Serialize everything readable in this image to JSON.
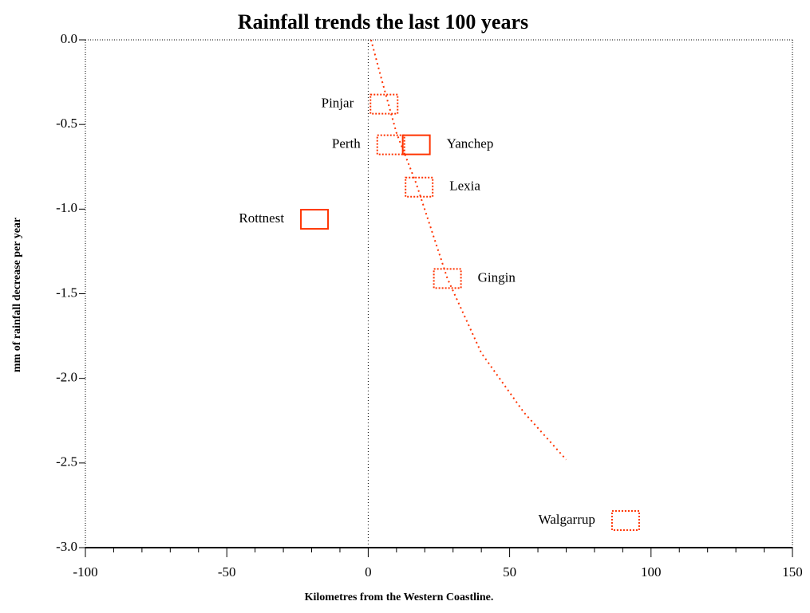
{
  "chart_data": {
    "type": "scatter",
    "title": "Rainfall trends the last 100 years",
    "xlabel": "Kilometres from the Western Coastline.",
    "ylabel": "mm of rainfall decrease per year",
    "series": [
      {
        "name": null,
        "color": "#ff3300",
        "labels": [
          "Pinjar",
          "Perth",
          "Yanchep",
          "Lexia",
          "Rottnest",
          "Gingin",
          "Walgarrup"
        ],
        "x": [
          5.6,
          8,
          17,
          18,
          -19,
          28,
          91
        ],
        "values": [
          -0.38,
          -0.62,
          -0.62,
          -0.87,
          -1.06,
          -1.41,
          -2.84
        ],
        "marker_styles": [
          "dotted",
          "dotted",
          "solid",
          "dotted",
          "solid",
          "dotted",
          "dotted"
        ]
      }
    ],
    "trend": {
      "color": "#ff3300",
      "x": [
        1,
        5,
        10,
        17,
        28,
        40,
        55,
        70
      ],
      "values": [
        0,
        -0.25,
        -0.55,
        -0.85,
        -1.41,
        -1.85,
        -2.2,
        -2.48
      ]
    },
    "xlim": [
      -100,
      150
    ],
    "xticks": [
      -100,
      -50,
      0,
      50,
      100,
      150
    ],
    "ylim": [
      -3,
      0
    ],
    "yticks": [
      {
        "value": 0,
        "label": "0.0"
      },
      -0.5,
      {
        "value": -1,
        "label": "-1.0"
      },
      -1.5,
      {
        "value": -2,
        "label": "-2.0"
      },
      -2.5,
      {
        "value": -3,
        "label": "-3.0"
      }
    ]
  }
}
